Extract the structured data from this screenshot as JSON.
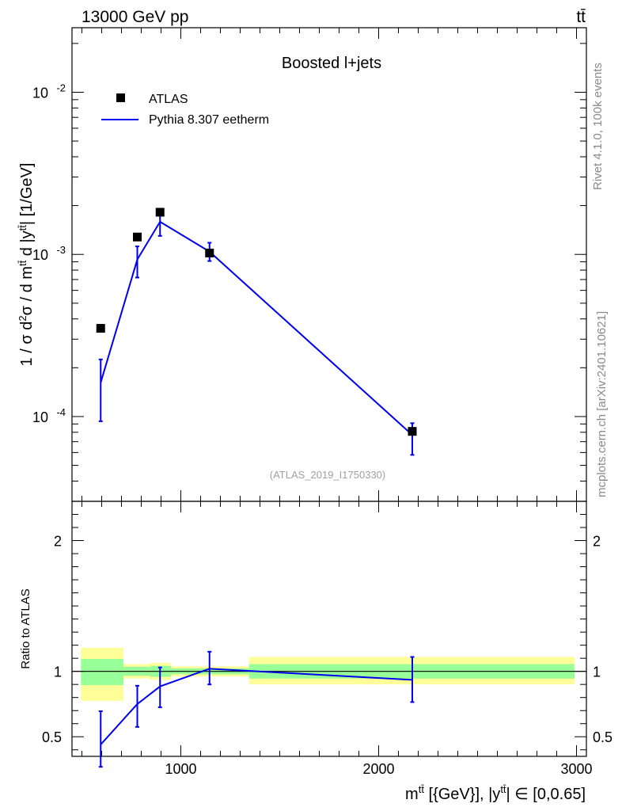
{
  "header": {
    "left_label": "13000 GeV pp",
    "right_label": "tt̄"
  },
  "side_labels": {
    "rivet": "Rivet 4.1.0,  100k events",
    "site": "mcplots.cern.ch [arXiv:2401.10621]"
  },
  "chart_data": [
    {
      "type": "line",
      "panel": "main",
      "title": "Boosted l+jets",
      "watermark": "(ATLAS_2019_I1750330)",
      "xlabel": "m^{tt̄} [{GeV}], |y^{tt̄}| ∈ [0,0.65]",
      "ylabel": "1 / σ d²σ / d m^{tt̄} d |y^{tt̄}| [1/GeV]",
      "yscale": "log",
      "xlim": [
        450,
        3050
      ],
      "ylim": [
        3e-05,
        0.025
      ],
      "ytick_labels": [
        "10^{-4}",
        "10^{-3}",
        "10^{-2}"
      ],
      "legend": [
        {
          "label": "ATLAS",
          "marker": "square",
          "color": "#000000"
        },
        {
          "label": "Pythia 8.307 eetherm",
          "marker": "line",
          "color": "#0000ee"
        }
      ],
      "series": [
        {
          "name": "ATLAS",
          "x": [
            595,
            780,
            895,
            1145,
            2170
          ],
          "y": [
            0.00035,
            0.00128,
            0.00182,
            0.00102,
            8.1e-05
          ]
        },
        {
          "name": "Pythia 8.307 eetherm",
          "x": [
            595,
            780,
            895,
            1145,
            2170
          ],
          "y": [
            0.000162,
            0.00093,
            0.00159,
            0.00104,
            7.7e-05
          ],
          "err_low": [
            9.35e-05,
            0.00072,
            0.0013,
            0.00091,
            5.8e-05
          ],
          "err_high": [
            0.000225,
            0.00112,
            0.00182,
            0.00118,
            9.1e-05
          ]
        }
      ]
    },
    {
      "type": "line",
      "panel": "ratio",
      "ylabel": "Ratio to ATLAS",
      "xlim": [
        450,
        3050
      ],
      "ylim": [
        0.35,
        2.3
      ],
      "ytick_labels": [
        "0.5",
        "1",
        "2"
      ],
      "xtick_labels": [
        "1000",
        "2000",
        "3000"
      ],
      "bands": [
        {
          "x0": 495,
          "x1": 710,
          "yellow": [
            0.775,
            1.18
          ],
          "green": [
            0.895,
            1.095
          ]
        },
        {
          "x0": 710,
          "x1": 845,
          "yellow": [
            0.945,
            1.055
          ],
          "green": [
            0.967,
            1.035
          ]
        },
        {
          "x0": 845,
          "x1": 950,
          "yellow": [
            0.935,
            1.065
          ],
          "green": [
            0.958,
            1.042
          ]
        },
        {
          "x0": 950,
          "x1": 1345,
          "yellow": [
            0.962,
            1.038
          ],
          "green": [
            0.978,
            1.022
          ]
        },
        {
          "x0": 1345,
          "x1": 2990,
          "yellow": [
            0.9,
            1.11
          ],
          "green": [
            0.945,
            1.055
          ]
        }
      ],
      "series": [
        {
          "name": "Pythia 8.307 eetherm / ATLAS",
          "x": [
            595,
            780,
            895,
            1145,
            2170
          ],
          "y": [
            0.44,
            0.75,
            0.885,
            1.02,
            0.935
          ],
          "err_low": [
            0.27,
            0.575,
            0.725,
            0.9,
            0.765
          ],
          "err_high": [
            0.695,
            0.89,
            1.03,
            1.15,
            1.11
          ]
        }
      ]
    }
  ]
}
